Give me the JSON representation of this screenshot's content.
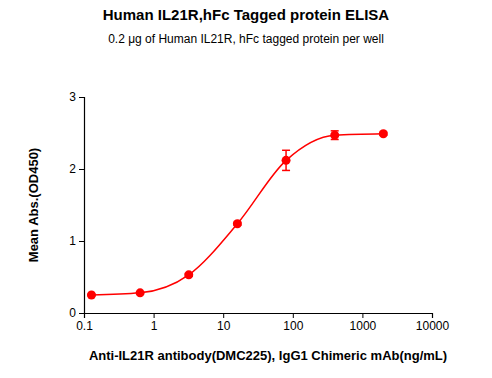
{
  "chart_data": {
    "type": "line",
    "title": "Human IL21R,hFc Tagged protein ELISA",
    "subtitle": "0.2 μg of Human IL21R, hFc tagged protein per well",
    "x_label": "Anti-IL21R antibody(DMC225), IgG1 Chimeric mAb(ng/mL)",
    "y_label": "Mean Abs.(OD450)",
    "x": [
      0.128,
      0.64,
      3.2,
      16,
      80,
      400,
      2000
    ],
    "values": [
      0.25,
      0.28,
      0.53,
      1.24,
      2.12,
      2.47,
      2.49
    ],
    "errors": [
      0.01,
      0.01,
      0.02,
      0.02,
      0.14,
      0.06,
      0.02
    ],
    "color": "#ff0000",
    "marker": "circle",
    "log": "x",
    "xlim": [
      0.1,
      10000
    ],
    "xticks": [
      0.1,
      1,
      10,
      100,
      1000,
      10000
    ],
    "ylim": [
      0,
      3
    ],
    "yticks": [
      0,
      1,
      2,
      3
    ]
  }
}
